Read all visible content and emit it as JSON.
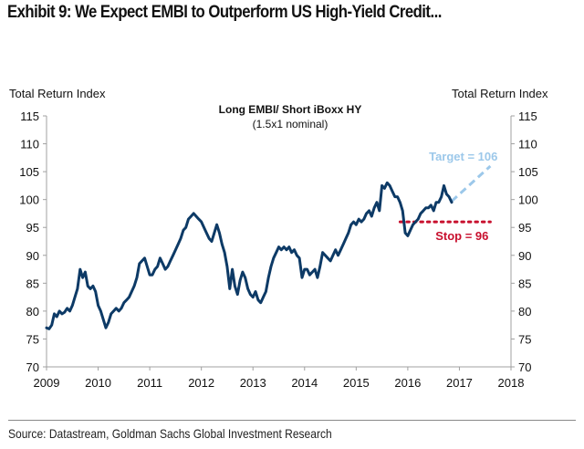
{
  "header": {
    "title": "Exhibit 9: We Expect EMBI to Outperform US High-Yield Credit..."
  },
  "footer": {
    "source": "Source: Datastream, Goldman Sachs Global Investment Research"
  },
  "colors": {
    "series": "#0d3a66",
    "target": "#9cc8ea",
    "stop": "#c8102e",
    "axis": "#a0a0a0"
  },
  "chart_data": {
    "type": "line",
    "title": "Long EMBI/ Short iBoxx HY",
    "subtitle": "(1.5x1 nominal)",
    "ylabel_left": "Total Return Index",
    "ylabel_right": "Total Return Index",
    "xlabel": "",
    "xlim": [
      2009,
      2018
    ],
    "ylim": [
      70,
      115
    ],
    "x_ticks": [
      "2009",
      "2010",
      "2011",
      "2012",
      "2013",
      "2014",
      "2015",
      "2016",
      "2017",
      "2018"
    ],
    "y_ticks": [
      "70",
      "75",
      "80",
      "85",
      "90",
      "95",
      "100",
      "105",
      "110",
      "115"
    ],
    "grid": false,
    "legend": "none",
    "series": [
      {
        "name": "Long EMBI/ Short iBoxx HY",
        "x": [
          2009.0,
          2009.05,
          2009.1,
          2009.15,
          2009.2,
          2009.25,
          2009.3,
          2009.35,
          2009.4,
          2009.45,
          2009.5,
          2009.55,
          2009.6,
          2009.65,
          2009.7,
          2009.75,
          2009.8,
          2009.85,
          2009.9,
          2009.95,
          2010.0,
          2010.05,
          2010.1,
          2010.15,
          2010.2,
          2010.25,
          2010.3,
          2010.35,
          2010.4,
          2010.45,
          2010.5,
          2010.55,
          2010.6,
          2010.65,
          2010.7,
          2010.75,
          2010.8,
          2010.85,
          2010.9,
          2010.95,
          2011.0,
          2011.05,
          2011.1,
          2011.15,
          2011.2,
          2011.25,
          2011.3,
          2011.35,
          2011.4,
          2011.45,
          2011.5,
          2011.55,
          2011.6,
          2011.65,
          2011.7,
          2011.75,
          2011.8,
          2011.85,
          2011.9,
          2011.95,
          2012.0,
          2012.05,
          2012.1,
          2012.15,
          2012.2,
          2012.25,
          2012.3,
          2012.35,
          2012.4,
          2012.45,
          2012.5,
          2012.55,
          2012.6,
          2012.65,
          2012.7,
          2012.75,
          2012.8,
          2012.85,
          2012.9,
          2012.95,
          2013.0,
          2013.05,
          2013.1,
          2013.15,
          2013.2,
          2013.25,
          2013.3,
          2013.35,
          2013.4,
          2013.45,
          2013.5,
          2013.55,
          2013.6,
          2013.65,
          2013.7,
          2013.75,
          2013.8,
          2013.85,
          2013.9,
          2013.95,
          2014.0,
          2014.05,
          2014.1,
          2014.15,
          2014.2,
          2014.25,
          2014.3,
          2014.35,
          2014.4,
          2014.45,
          2014.5,
          2014.55,
          2014.6,
          2014.65,
          2014.7,
          2014.75,
          2014.8,
          2014.85,
          2014.9,
          2014.95,
          2015.0,
          2015.05,
          2015.1,
          2015.15,
          2015.2,
          2015.25,
          2015.3,
          2015.35,
          2015.4,
          2015.45,
          2015.5,
          2015.55,
          2015.6,
          2015.65,
          2015.7,
          2015.75,
          2015.8,
          2015.85,
          2015.9,
          2015.95,
          2016.0,
          2016.05,
          2016.1,
          2016.15,
          2016.2,
          2016.25,
          2016.3,
          2016.35,
          2016.4,
          2016.45,
          2016.5,
          2016.55,
          2016.6,
          2016.65,
          2016.7,
          2016.75,
          2016.8,
          2016.85
        ],
        "y": [
          77.0,
          76.8,
          77.5,
          79.5,
          79.0,
          80.0,
          79.5,
          79.8,
          80.5,
          80.0,
          81.0,
          82.5,
          84.0,
          87.5,
          86.0,
          87.0,
          84.5,
          84.0,
          84.5,
          83.5,
          81.0,
          80.0,
          78.5,
          77.0,
          78.0,
          79.5,
          80.0,
          80.5,
          80.0,
          80.5,
          81.5,
          82.0,
          82.5,
          83.5,
          84.5,
          86.0,
          88.5,
          89.0,
          89.5,
          88.0,
          86.5,
          86.5,
          87.5,
          88.0,
          89.5,
          88.5,
          87.5,
          88.0,
          89.0,
          90.0,
          91.0,
          92.0,
          93.0,
          94.5,
          95.0,
          96.5,
          97.0,
          97.5,
          97.0,
          96.5,
          96.0,
          95.0,
          94.0,
          93.0,
          92.5,
          94.0,
          95.5,
          94.0,
          92.0,
          90.5,
          88.0,
          84.0,
          87.5,
          84.5,
          83.0,
          85.5,
          87.0,
          86.0,
          84.0,
          83.0,
          82.5,
          83.5,
          82.0,
          81.5,
          82.5,
          83.5,
          86.0,
          88.0,
          89.5,
          90.5,
          91.5,
          91.0,
          91.5,
          91.0,
          91.5,
          90.5,
          91.0,
          90.0,
          89.5,
          86.0,
          87.5,
          87.5,
          86.5,
          87.0,
          87.5,
          86.0,
          88.0,
          90.5,
          90.0,
          89.5,
          89.0,
          90.0,
          91.0,
          90.0,
          91.0,
          92.0,
          93.0,
          94.0,
          95.5,
          96.0,
          95.5,
          96.5,
          96.0,
          96.5,
          97.5,
          98.0,
          97.0,
          98.5,
          99.5,
          98.0,
          102.5,
          102.0,
          103.0,
          102.5,
          101.5,
          100.5,
          100.5,
          99.5,
          98.0,
          94.0,
          93.5,
          94.5,
          95.5,
          96.0,
          96.5,
          97.5,
          98.0,
          98.5,
          98.5,
          99.0,
          98.0,
          99.5,
          99.5,
          100.5,
          102.5,
          101.0,
          100.5,
          99.5
        ]
      }
    ],
    "annotations": [
      {
        "label": "Target = 106",
        "type": "dashed-projection",
        "from": [
          2016.85,
          99.7
        ],
        "to": [
          2017.6,
          106
        ]
      },
      {
        "label": "Stop = 96",
        "type": "dotted-level",
        "value": 96,
        "x_from": 2015.85,
        "x_to": 2017.6
      }
    ]
  }
}
